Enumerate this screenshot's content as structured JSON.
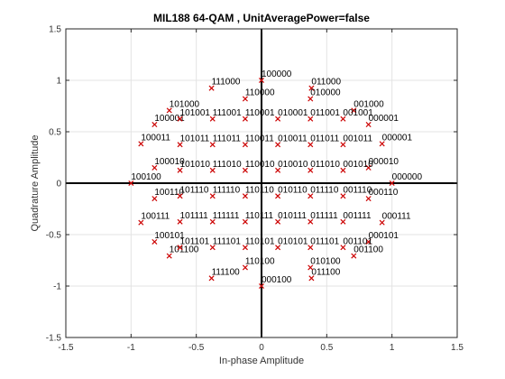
{
  "chart_data": {
    "type": "scatter",
    "title": "MIL188 64-QAM , UnitAveragePower=false",
    "xlabel": "In-phase Amplitude",
    "ylabel": "Quadrature Amplitude",
    "xlim": [
      -1.5,
      1.5
    ],
    "ylim": [
      -1.5,
      1.5
    ],
    "xticks": [
      -1.5,
      -1,
      -0.5,
      0,
      0.5,
      1,
      1.5
    ],
    "yticks": [
      -1.5,
      -1,
      -0.5,
      0,
      0.5,
      1,
      1.5
    ],
    "xtick_labels": [
      "-1.5",
      "-1",
      "-0.5",
      "0",
      "0.5",
      "1",
      "1.5"
    ],
    "ytick_labels": [
      "-1.5",
      "-1",
      "-0.5",
      "0",
      "0.5",
      "1",
      "1.5"
    ],
    "grid": true,
    "marker_color": "#cc0000",
    "points": [
      {
        "x": 1.0,
        "y": 0.0,
        "label": "000000"
      },
      {
        "x": 0.924,
        "y": 0.383,
        "label": "000001"
      },
      {
        "x": 0.707,
        "y": 0.707,
        "label": "001000"
      },
      {
        "x": 0.383,
        "y": 0.924,
        "label": "011000"
      },
      {
        "x": 0.0,
        "y": 1.0,
        "label": "100000"
      },
      {
        "x": -0.383,
        "y": 0.924,
        "label": "111000"
      },
      {
        "x": -0.707,
        "y": 0.707,
        "label": "101000"
      },
      {
        "x": -0.924,
        "y": 0.383,
        "label": "100011"
      },
      {
        "x": -1.0,
        "y": 0.0,
        "label": "100100"
      },
      {
        "x": -0.924,
        "y": -0.383,
        "label": "100111"
      },
      {
        "x": -0.707,
        "y": -0.707,
        "label": "101100"
      },
      {
        "x": -0.383,
        "y": -0.924,
        "label": "111100"
      },
      {
        "x": 0.0,
        "y": -1.0,
        "label": "000100"
      },
      {
        "x": 0.383,
        "y": -0.924,
        "label": "011100"
      },
      {
        "x": 0.707,
        "y": -0.707,
        "label": "001100"
      },
      {
        "x": 0.924,
        "y": -0.383,
        "label": "000111"
      },
      {
        "x": -0.125,
        "y": 0.82,
        "label": "110000"
      },
      {
        "x": 0.375,
        "y": 0.82,
        "label": "010000"
      },
      {
        "x": -0.82,
        "y": 0.57,
        "label": "100001"
      },
      {
        "x": 0.82,
        "y": 0.57,
        "label": "000001"
      },
      {
        "x": -0.82,
        "y": 0.15,
        "label": "100010"
      },
      {
        "x": 0.82,
        "y": 0.15,
        "label": "000010"
      },
      {
        "x": -0.82,
        "y": -0.15,
        "label": "100110"
      },
      {
        "x": 0.82,
        "y": -0.15,
        "label": "000110"
      },
      {
        "x": -0.82,
        "y": -0.57,
        "label": "100101"
      },
      {
        "x": 0.82,
        "y": -0.57,
        "label": "000101"
      },
      {
        "x": -0.125,
        "y": -0.82,
        "label": "110100"
      },
      {
        "x": 0.375,
        "y": -0.82,
        "label": "010100"
      },
      {
        "x": -0.625,
        "y": 0.625,
        "label": "101001"
      },
      {
        "x": -0.375,
        "y": 0.625,
        "label": "111001"
      },
      {
        "x": -0.125,
        "y": 0.625,
        "label": "110001"
      },
      {
        "x": 0.125,
        "y": 0.625,
        "label": "010001"
      },
      {
        "x": 0.375,
        "y": 0.625,
        "label": "011001"
      },
      {
        "x": 0.625,
        "y": 0.625,
        "label": "001001"
      },
      {
        "x": -0.625,
        "y": 0.375,
        "label": "101011"
      },
      {
        "x": -0.375,
        "y": 0.375,
        "label": "111011"
      },
      {
        "x": -0.125,
        "y": 0.375,
        "label": "110011"
      },
      {
        "x": 0.125,
        "y": 0.375,
        "label": "010011"
      },
      {
        "x": 0.375,
        "y": 0.375,
        "label": "011011"
      },
      {
        "x": 0.625,
        "y": 0.375,
        "label": "001011"
      },
      {
        "x": -0.625,
        "y": 0.125,
        "label": "101010"
      },
      {
        "x": -0.375,
        "y": 0.125,
        "label": "111010"
      },
      {
        "x": -0.125,
        "y": 0.125,
        "label": "110010"
      },
      {
        "x": 0.125,
        "y": 0.125,
        "label": "010010"
      },
      {
        "x": 0.375,
        "y": 0.125,
        "label": "011010"
      },
      {
        "x": 0.625,
        "y": 0.125,
        "label": "001010"
      },
      {
        "x": -0.625,
        "y": -0.125,
        "label": "101110"
      },
      {
        "x": -0.375,
        "y": -0.125,
        "label": "111110"
      },
      {
        "x": -0.125,
        "y": -0.125,
        "label": "110110"
      },
      {
        "x": 0.125,
        "y": -0.125,
        "label": "010110"
      },
      {
        "x": 0.375,
        "y": -0.125,
        "label": "011110"
      },
      {
        "x": 0.625,
        "y": -0.125,
        "label": "001110"
      },
      {
        "x": -0.625,
        "y": -0.375,
        "label": "101111"
      },
      {
        "x": -0.375,
        "y": -0.375,
        "label": "111111"
      },
      {
        "x": -0.125,
        "y": -0.375,
        "label": "110111"
      },
      {
        "x": 0.125,
        "y": -0.375,
        "label": "010111"
      },
      {
        "x": 0.375,
        "y": -0.375,
        "label": "011111"
      },
      {
        "x": 0.625,
        "y": -0.375,
        "label": "001111"
      },
      {
        "x": -0.625,
        "y": -0.625,
        "label": "101101"
      },
      {
        "x": -0.375,
        "y": -0.625,
        "label": "111101"
      },
      {
        "x": -0.125,
        "y": -0.625,
        "label": "110101"
      },
      {
        "x": 0.125,
        "y": -0.625,
        "label": "010101"
      },
      {
        "x": 0.375,
        "y": -0.625,
        "label": "011101"
      },
      {
        "x": 0.625,
        "y": -0.625,
        "label": "001101"
      }
    ]
  }
}
